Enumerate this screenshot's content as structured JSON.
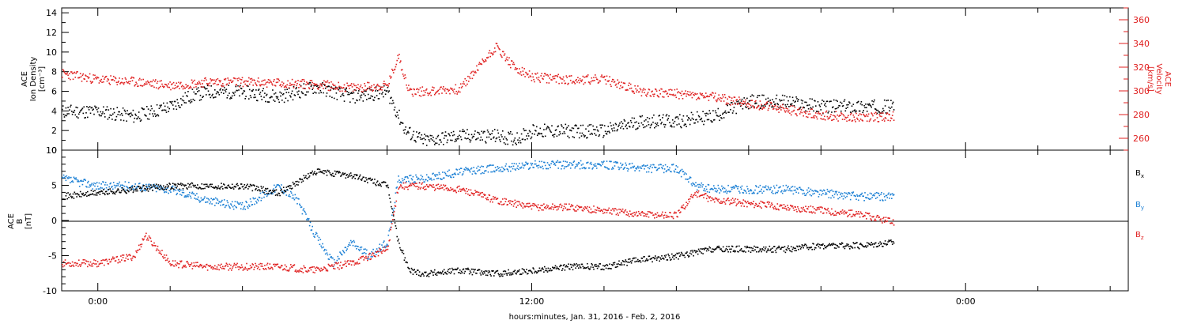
{
  "figure": {
    "xlabel": "hours:minutes, Jan. 31, 2016 - Feb. 2, 2016"
  },
  "colors": {
    "black": "#000000",
    "red": "#e02020",
    "blue": "#1a7fd4"
  },
  "chart_data": [
    {
      "type": "scatter",
      "panel": "top",
      "left_axis_label": [
        "ACE",
        "Ion Density",
        "[cm⁻³]"
      ],
      "right_axis_label": [
        "ACE",
        "Velocity",
        "[km/s]"
      ],
      "x_ticks": [
        "0:00",
        "12:00",
        "0:00"
      ],
      "x_tick_hours": [
        0,
        12,
        24
      ],
      "xlim_hours": [
        -1.0,
        28.5
      ],
      "data_end_hour": 22.0,
      "ylim_left": [
        0,
        14.5
      ],
      "ylim_right": [
        250,
        370
      ],
      "yticks_left": [
        "0",
        "2",
        "4",
        "6",
        "8",
        "10",
        "12",
        "14"
      ],
      "yticks_right": [
        "260",
        "280",
        "300",
        "320",
        "340",
        "360"
      ],
      "series": [
        {
          "name": "density",
          "color": "black",
          "axis": "left",
          "points": [
            [
              -1,
              4.0
            ],
            [
              0,
              4.0
            ],
            [
              1,
              3.5
            ],
            [
              2,
              4.5
            ],
            [
              2.5,
              5.5
            ],
            [
              3,
              6.0
            ],
            [
              4,
              6.0
            ],
            [
              5,
              5.5
            ],
            [
              6,
              6.5
            ],
            [
              7,
              5.5
            ],
            [
              8,
              6.0
            ],
            [
              8.5,
              2.0
            ],
            [
              9,
              1.0
            ],
            [
              10,
              1.5
            ],
            [
              11,
              1.5
            ],
            [
              11.5,
              1.2
            ],
            [
              12,
              2.0
            ],
            [
              13,
              2.0
            ],
            [
              14,
              2.0
            ],
            [
              15,
              3.0
            ],
            [
              16,
              3.0
            ],
            [
              17,
              3.5
            ],
            [
              18,
              5.0
            ],
            [
              19,
              5.0
            ],
            [
              20,
              4.5
            ],
            [
              21,
              4.5
            ],
            [
              22,
              4.5
            ]
          ]
        },
        {
          "name": "velocity",
          "color": "red",
          "axis": "right",
          "points": [
            [
              -1,
              315
            ],
            [
              0,
              310
            ],
            [
              1,
              308
            ],
            [
              2,
              305
            ],
            [
              3,
              308
            ],
            [
              4,
              308
            ],
            [
              5,
              307
            ],
            [
              6,
              306
            ],
            [
              7,
              303
            ],
            [
              8,
              305
            ],
            [
              8.3,
              330
            ],
            [
              8.6,
              300
            ],
            [
              9,
              300
            ],
            [
              10,
              302
            ],
            [
              11,
              338
            ],
            [
              11.5,
              320
            ],
            [
              12,
              312
            ],
            [
              13,
              310
            ],
            [
              14,
              310
            ],
            [
              15,
              300
            ],
            [
              16,
              298
            ],
            [
              17,
              295
            ],
            [
              18,
              290
            ],
            [
              19,
              285
            ],
            [
              20,
              280
            ],
            [
              21,
              278
            ],
            [
              22,
              279
            ]
          ]
        }
      ]
    },
    {
      "type": "scatter",
      "panel": "bottom",
      "left_axis_label": [
        "ACE",
        "B",
        "[nT]"
      ],
      "ylim": [
        -10,
        10
      ],
      "yticks": [
        "-10",
        "-5",
        "0",
        "5",
        "10"
      ],
      "legend": [
        {
          "label": "B",
          "sub": "x",
          "color": "black"
        },
        {
          "label": "B",
          "sub": "y",
          "color": "blue"
        },
        {
          "label": "B",
          "sub": "z",
          "color": "red"
        }
      ],
      "series": [
        {
          "name": "Bx",
          "color": "black",
          "points": [
            [
              -1,
              3.5
            ],
            [
              0,
              4.0
            ],
            [
              1,
              4.5
            ],
            [
              2,
              5.0
            ],
            [
              3,
              5.0
            ],
            [
              4,
              5.0
            ],
            [
              5,
              4.0
            ],
            [
              6,
              7.0
            ],
            [
              7,
              6.5
            ],
            [
              8,
              5.0
            ],
            [
              8.3,
              -3.0
            ],
            [
              8.6,
              -7.0
            ],
            [
              9,
              -7.5
            ],
            [
              10,
              -7.0
            ],
            [
              11,
              -7.5
            ],
            [
              12,
              -7.0
            ],
            [
              13,
              -6.5
            ],
            [
              14,
              -6.5
            ],
            [
              15,
              -5.5
            ],
            [
              16,
              -5.0
            ],
            [
              17,
              -4.0
            ],
            [
              18,
              -4.0
            ],
            [
              19,
              -4.0
            ],
            [
              20,
              -3.5
            ],
            [
              21,
              -3.5
            ],
            [
              22,
              -3.0
            ]
          ]
        },
        {
          "name": "By",
          "color": "blue",
          "points": [
            [
              -1,
              6.0
            ],
            [
              0,
              5.0
            ],
            [
              1,
              5.0
            ],
            [
              2,
              4.5
            ],
            [
              3,
              3.0
            ],
            [
              4,
              2.0
            ],
            [
              5,
              5.0
            ],
            [
              5.5,
              3.0
            ],
            [
              6,
              -2.0
            ],
            [
              6.5,
              -6.0
            ],
            [
              7,
              -3.0
            ],
            [
              7.5,
              -5.0
            ],
            [
              8,
              -3.0
            ],
            [
              8.3,
              6.0
            ],
            [
              9,
              6.0
            ],
            [
              10,
              7.0
            ],
            [
              11,
              7.5
            ],
            [
              12,
              8.0
            ],
            [
              13,
              8.0
            ],
            [
              14,
              8.0
            ],
            [
              15,
              7.5
            ],
            [
              16,
              7.5
            ],
            [
              16.5,
              5.0
            ],
            [
              17,
              4.5
            ],
            [
              18,
              4.5
            ],
            [
              19,
              4.5
            ],
            [
              20,
              4.0
            ],
            [
              21,
              3.5
            ],
            [
              22,
              3.5
            ]
          ]
        },
        {
          "name": "Bz",
          "color": "red",
          "points": [
            [
              -1,
              -6.0
            ],
            [
              0,
              -6.0
            ],
            [
              1,
              -5.0
            ],
            [
              1.3,
              -2.0
            ],
            [
              2,
              -6.0
            ],
            [
              3,
              -6.5
            ],
            [
              4,
              -6.5
            ],
            [
              5,
              -6.5
            ],
            [
              6,
              -7.0
            ],
            [
              7,
              -6.0
            ],
            [
              8,
              -4.0
            ],
            [
              8.3,
              5.0
            ],
            [
              9,
              5.0
            ],
            [
              10,
              4.5
            ],
            [
              11,
              3.0
            ],
            [
              12,
              2.0
            ],
            [
              13,
              2.0
            ],
            [
              14,
              1.5
            ],
            [
              15,
              1.0
            ],
            [
              16,
              0.8
            ],
            [
              16.5,
              4.0
            ],
            [
              17,
              3.0
            ],
            [
              18,
              2.5
            ],
            [
              19,
              2.0
            ],
            [
              20,
              1.5
            ],
            [
              21,
              1.0
            ],
            [
              22,
              -0.2
            ]
          ]
        }
      ]
    }
  ]
}
